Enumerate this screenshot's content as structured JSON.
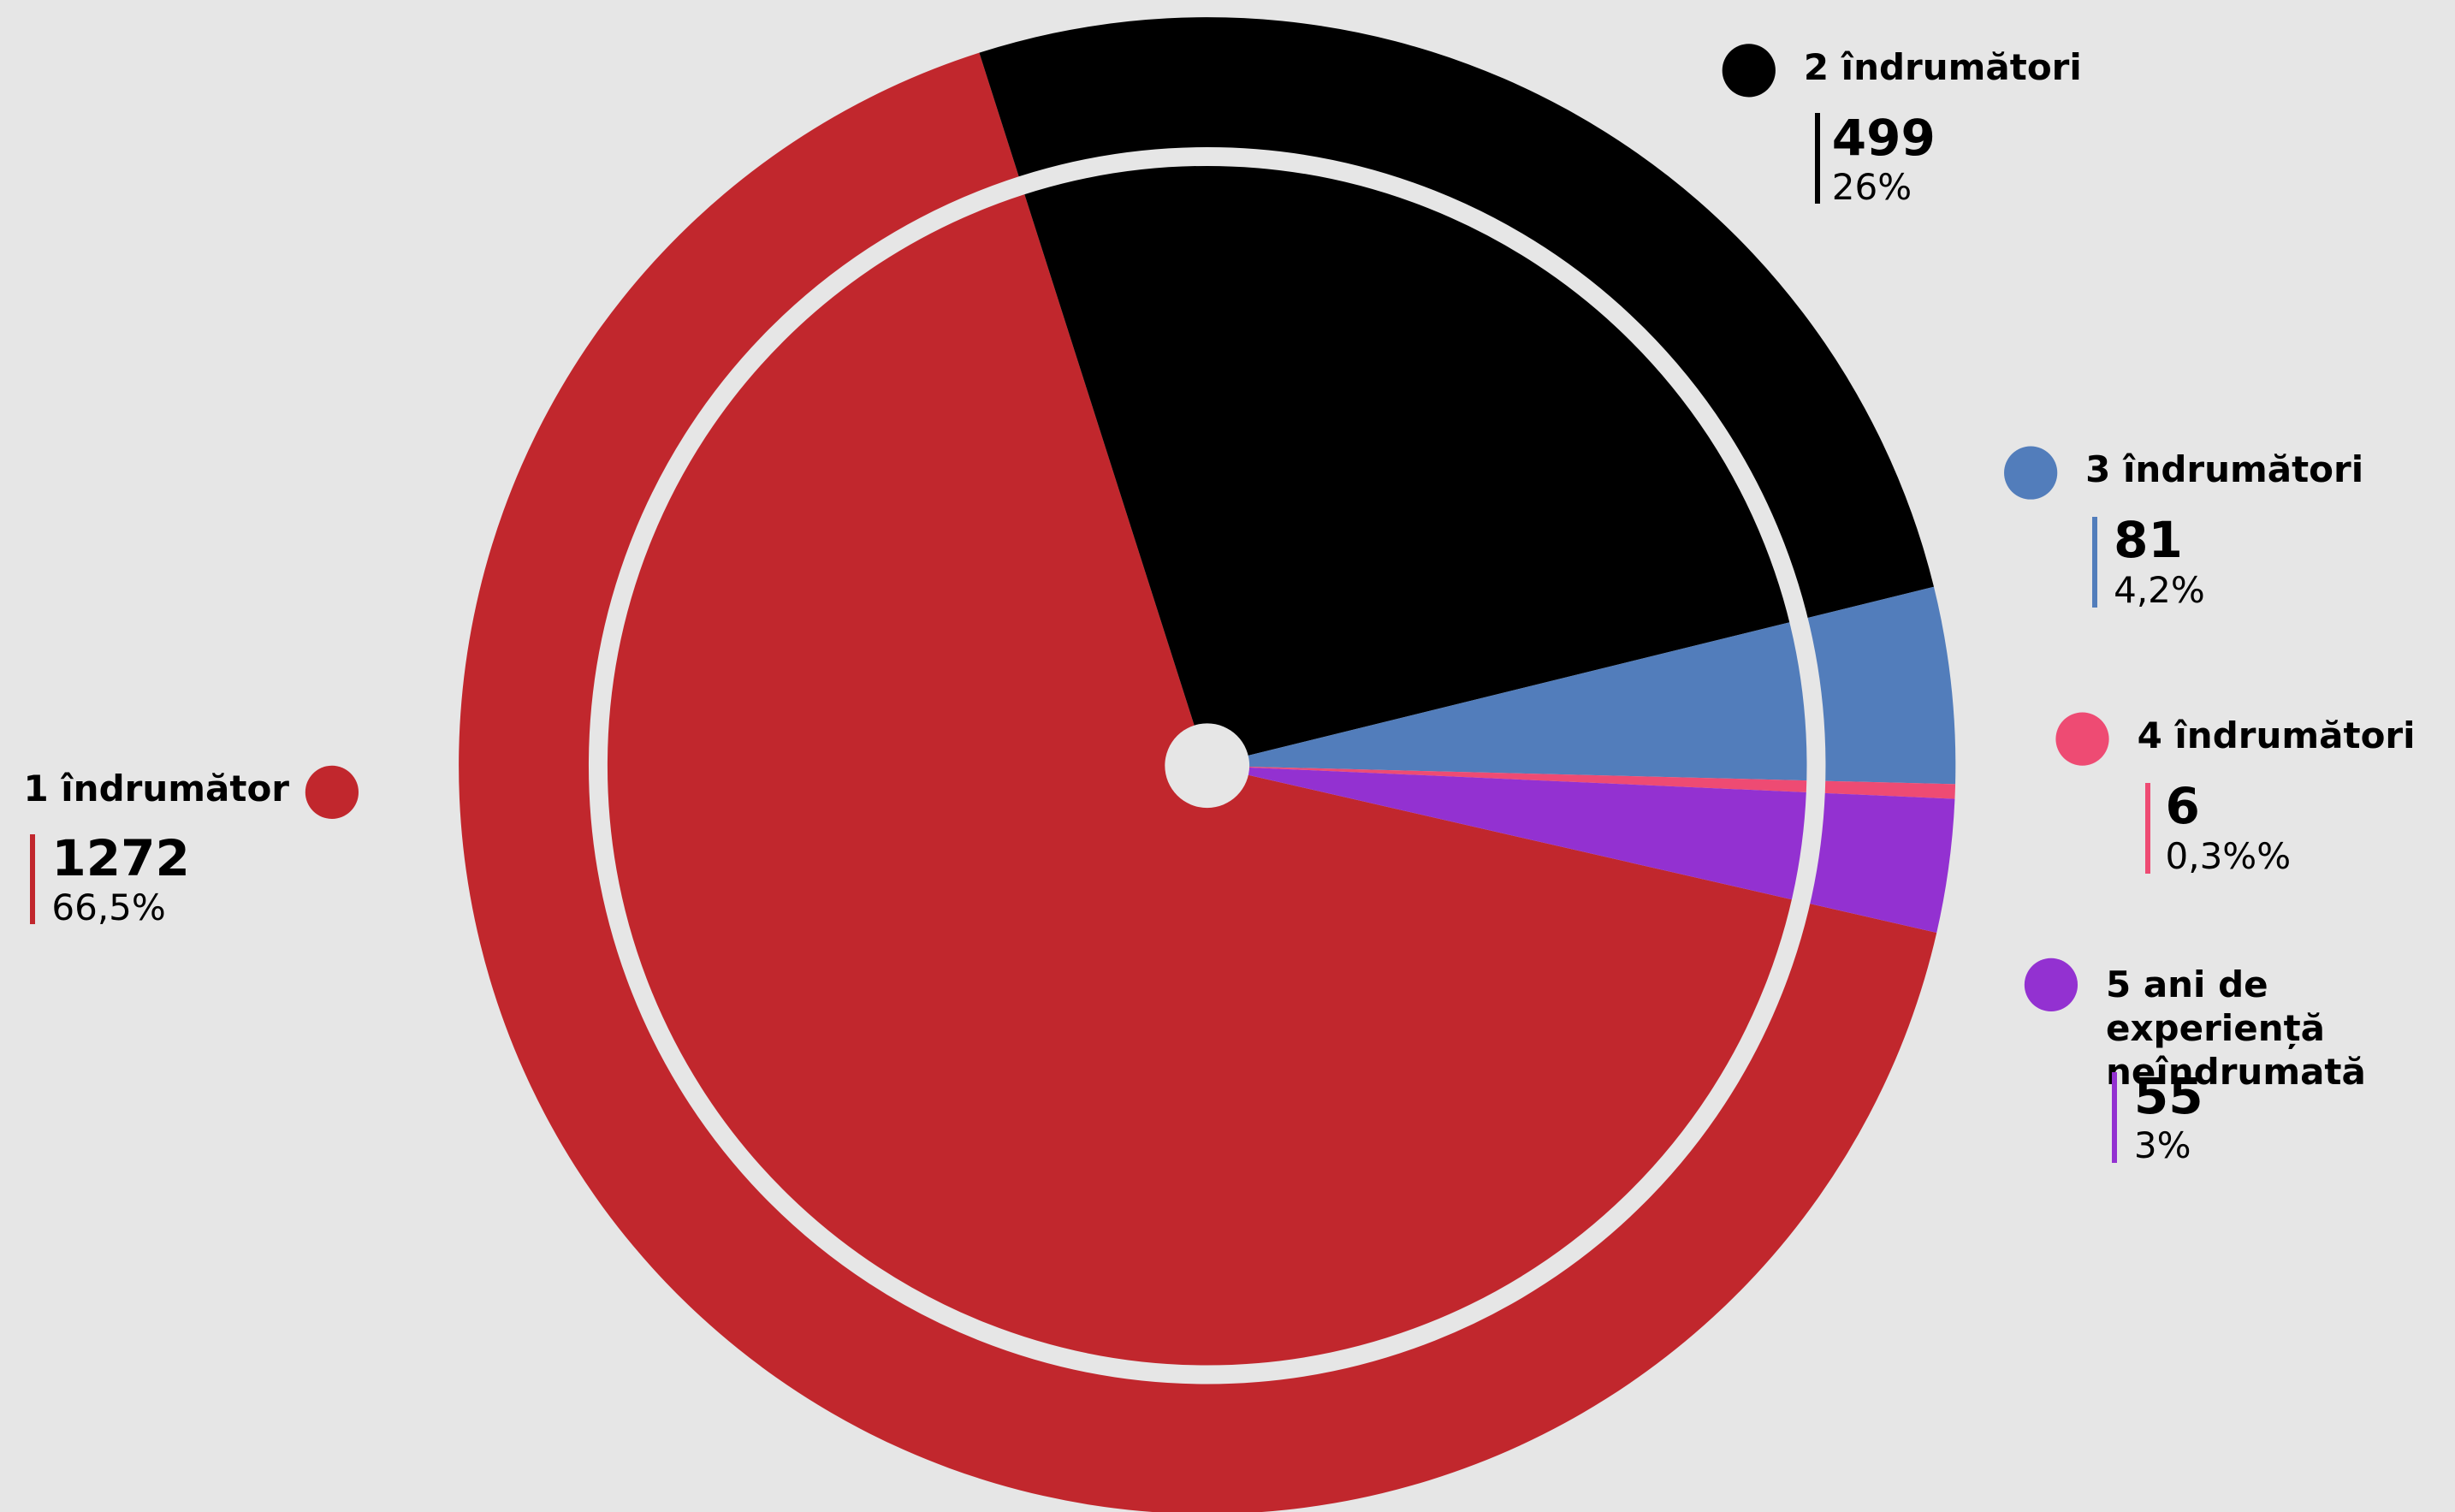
{
  "chart_data": {
    "type": "pie",
    "categories": [
      "1 îndrumător",
      "2 îndrumători",
      "3 îndrumători",
      "4 îndrumători",
      "5 ani de experiență neîndrumată"
    ],
    "values": [
      1272,
      499,
      81,
      6,
      55
    ],
    "percent_labels": [
      "66,5%",
      "26%",
      "4,2%",
      "0,3%%",
      "3%"
    ],
    "colors": [
      "#c1272d",
      "#000000",
      "#527dbb",
      "#ee4b73",
      "#9331d1"
    ]
  }
}
